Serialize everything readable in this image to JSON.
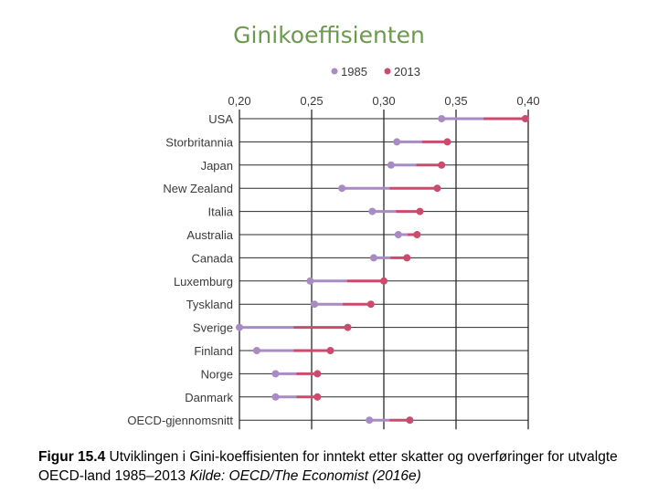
{
  "chart_data": {
    "type": "dot",
    "title": "Ginikoeffisienten",
    "x_ticks": [
      "0,20",
      "0,25",
      "0,30",
      "0,35",
      "0,40"
    ],
    "x_tick_values": [
      0.2,
      0.25,
      0.3,
      0.35,
      0.4
    ],
    "xlim": [
      0.2,
      0.4
    ],
    "legend": [
      {
        "name": "1985",
        "color": "#a98bc4"
      },
      {
        "name": "2013",
        "color": "#cc4a6e"
      }
    ],
    "legend_position": "top",
    "categories": [
      "USA",
      "Storbritannia",
      "Japan",
      "New Zealand",
      "Italia",
      "Australia",
      "Canada",
      "Luxemburg",
      "Tyskland",
      "Sverige",
      "Finland",
      "Norge",
      "Danmark",
      "OECD-gjennomsnitt"
    ],
    "series": [
      {
        "name": "1985",
        "values": [
          0.34,
          0.309,
          0.305,
          0.271,
          0.292,
          0.31,
          0.293,
          0.249,
          0.252,
          0.2,
          0.212,
          0.225,
          0.225,
          0.29
        ]
      },
      {
        "name": "2013",
        "values": [
          0.398,
          0.344,
          0.34,
          0.337,
          0.325,
          0.323,
          0.316,
          0.3,
          0.291,
          0.275,
          0.263,
          0.254,
          0.254,
          0.318
        ]
      }
    ]
  },
  "caption": {
    "label": "Figur 15.4",
    "text": " Utviklingen i Gini-koeffisienten for inntekt etter skatter og overføringer for utvalgte OECD-land 1985–2013 ",
    "source": "Kilde: OECD/The Economist (2016e)"
  }
}
